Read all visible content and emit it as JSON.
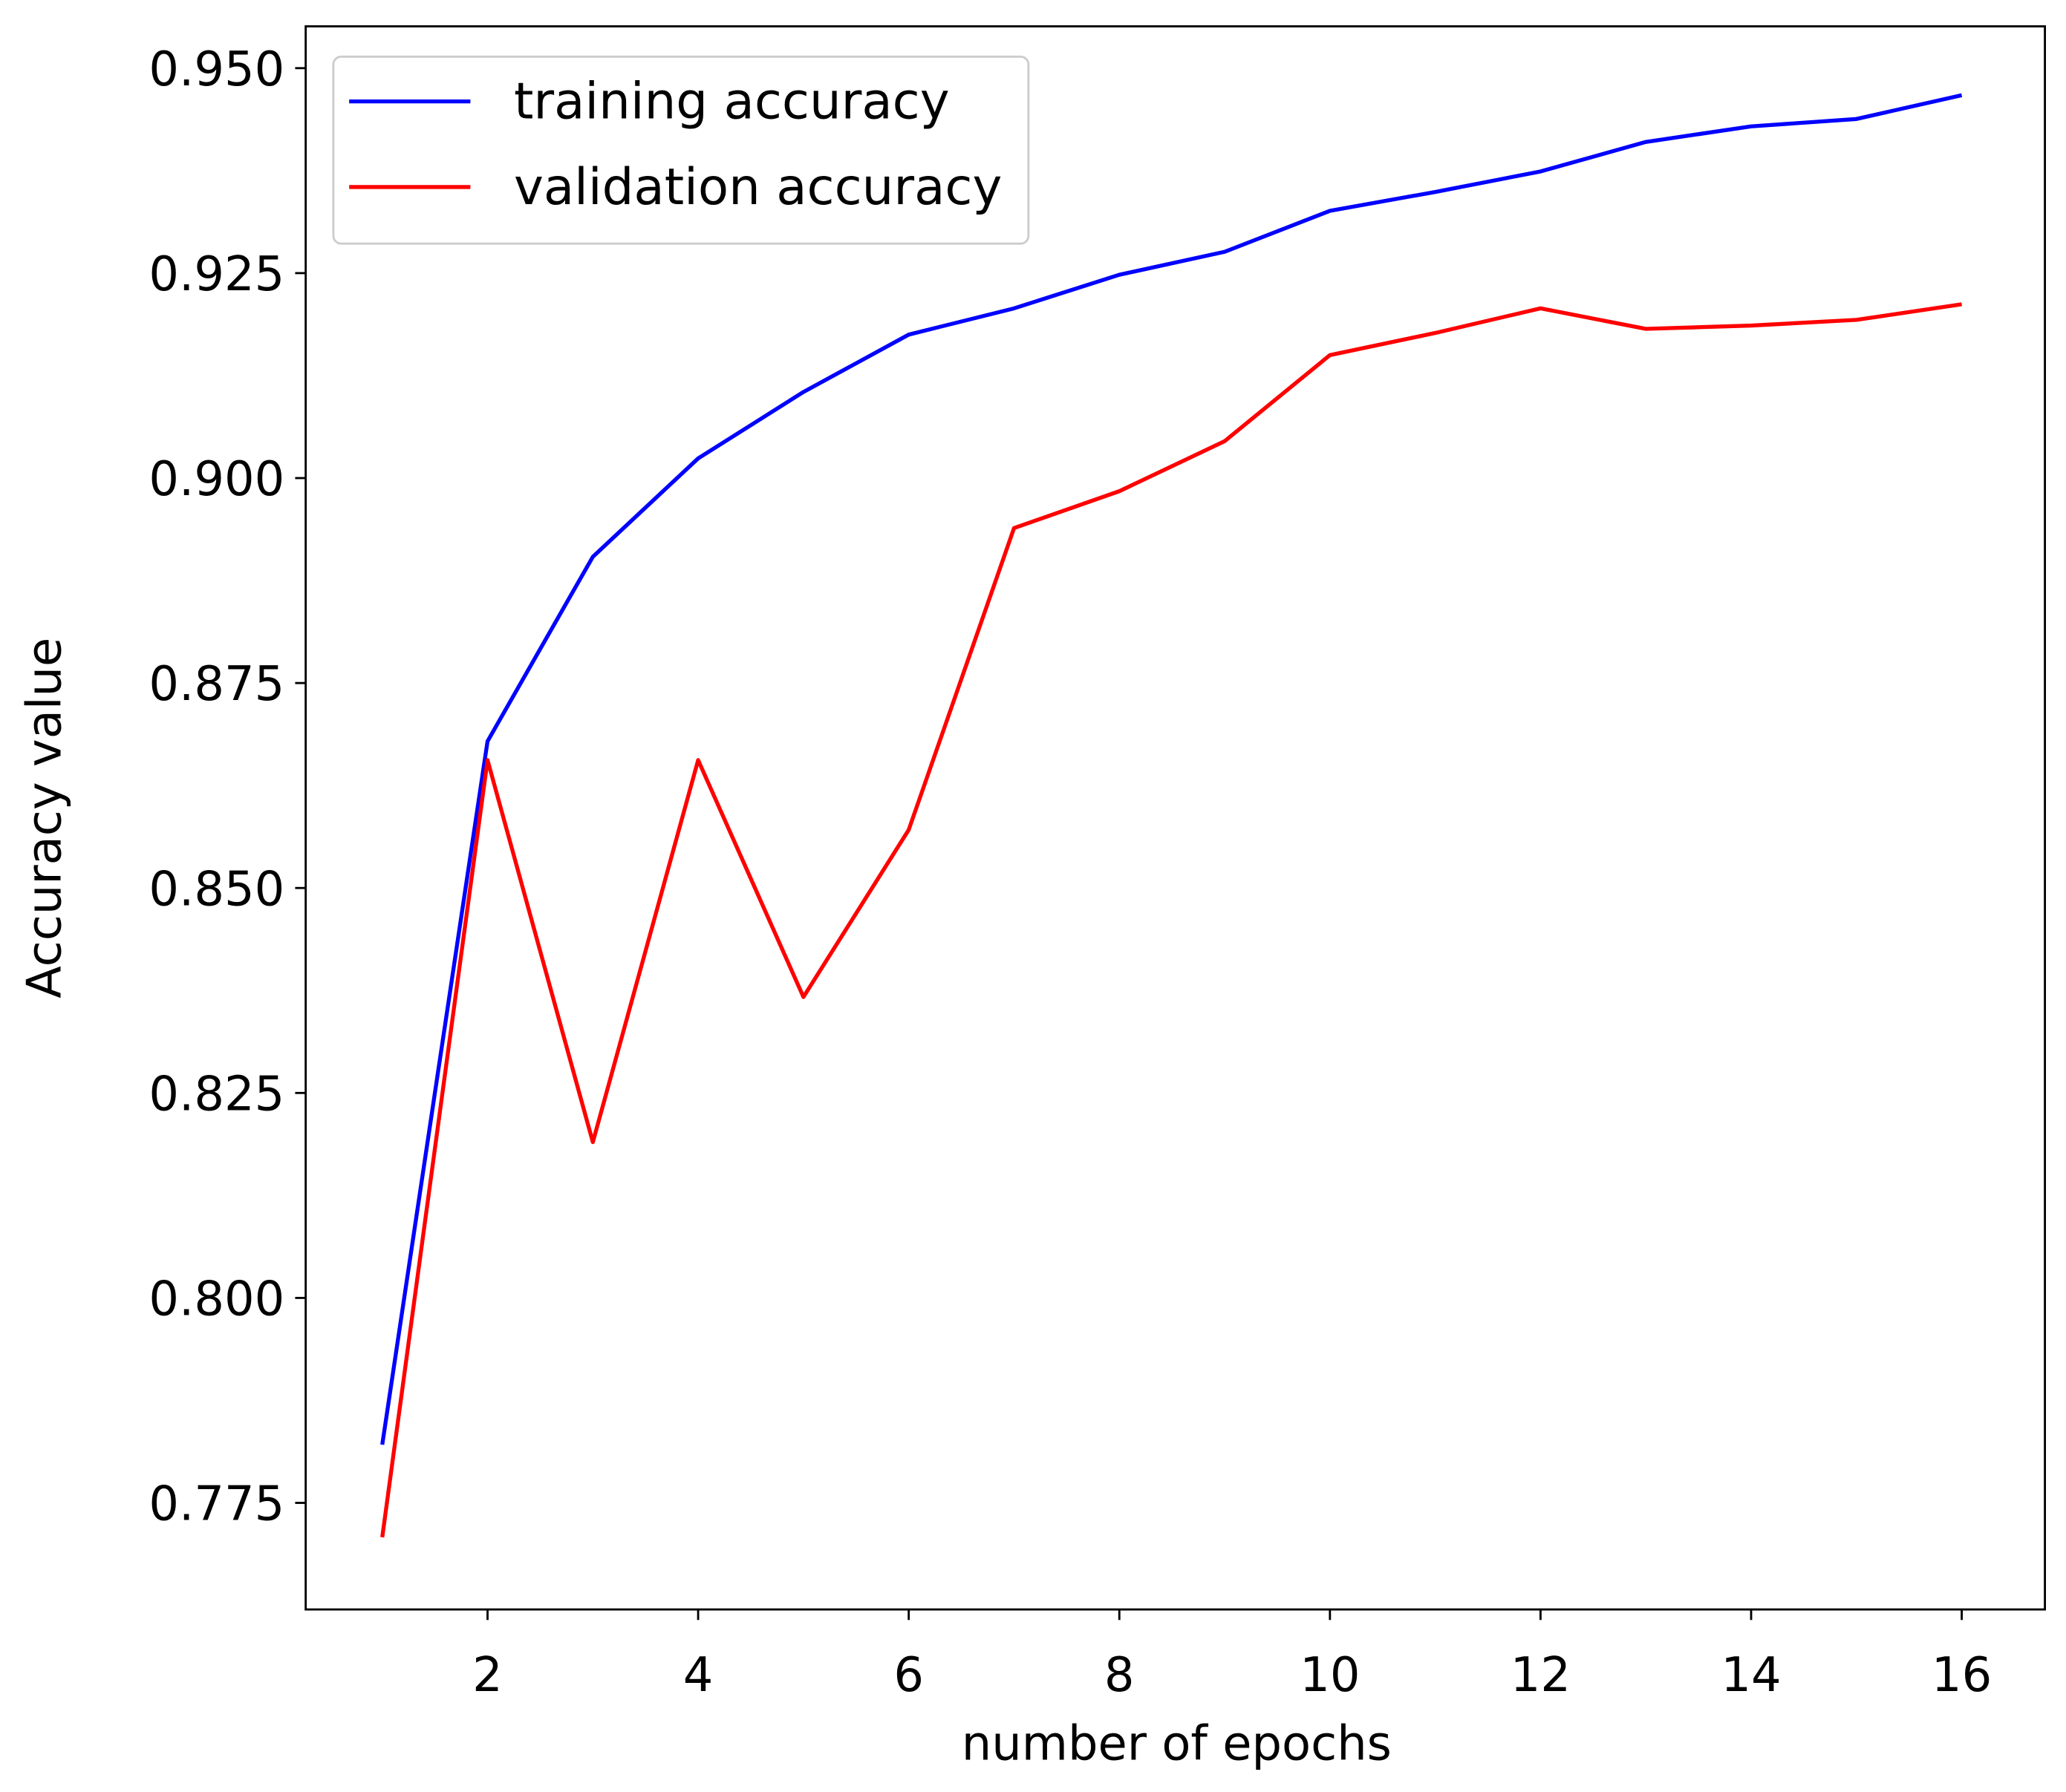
{
  "chart_data": {
    "type": "line",
    "x_label": "number of epochs",
    "y_label": "Accuracy value",
    "x": [
      1,
      2,
      3,
      4,
      5,
      6,
      7,
      8,
      9,
      10,
      11,
      12,
      13,
      14,
      15,
      16
    ],
    "series": [
      {
        "name": "training accuracy",
        "color": "#0000ff",
        "values": [
          0.7821,
          0.8679,
          0.8904,
          0.9024,
          0.9105,
          0.9175,
          0.9207,
          0.9248,
          0.9276,
          0.9326,
          0.9349,
          0.9374,
          0.941,
          0.9429,
          0.9438,
          0.9467
        ]
      },
      {
        "name": "validation accuracy",
        "color": "#ff0000",
        "values": [
          0.7708,
          0.8656,
          0.819,
          0.8656,
          0.8367,
          0.8571,
          0.8939,
          0.8984,
          0.9045,
          0.915,
          0.9177,
          0.9207,
          0.9182,
          0.9186,
          0.9193,
          0.9212
        ]
      }
    ],
    "xlim": [
      0.273,
      16.79
    ],
    "ylim": [
      0.762,
      0.9551
    ],
    "xticks": [
      2,
      4,
      6,
      8,
      10,
      12,
      14,
      16
    ],
    "yticks": [
      {
        "value": 0.775,
        "label": "0.775"
      },
      {
        "value": 0.8,
        "label": "0.800"
      },
      {
        "value": 0.825,
        "label": "0.825"
      },
      {
        "value": 0.85,
        "label": "0.850"
      },
      {
        "value": 0.875,
        "label": "0.875"
      },
      {
        "value": 0.9,
        "label": "0.900"
      },
      {
        "value": 0.925,
        "label": "0.925"
      },
      {
        "value": 0.95,
        "label": "0.950"
      }
    ],
    "grid": false,
    "legend": "upper left"
  }
}
